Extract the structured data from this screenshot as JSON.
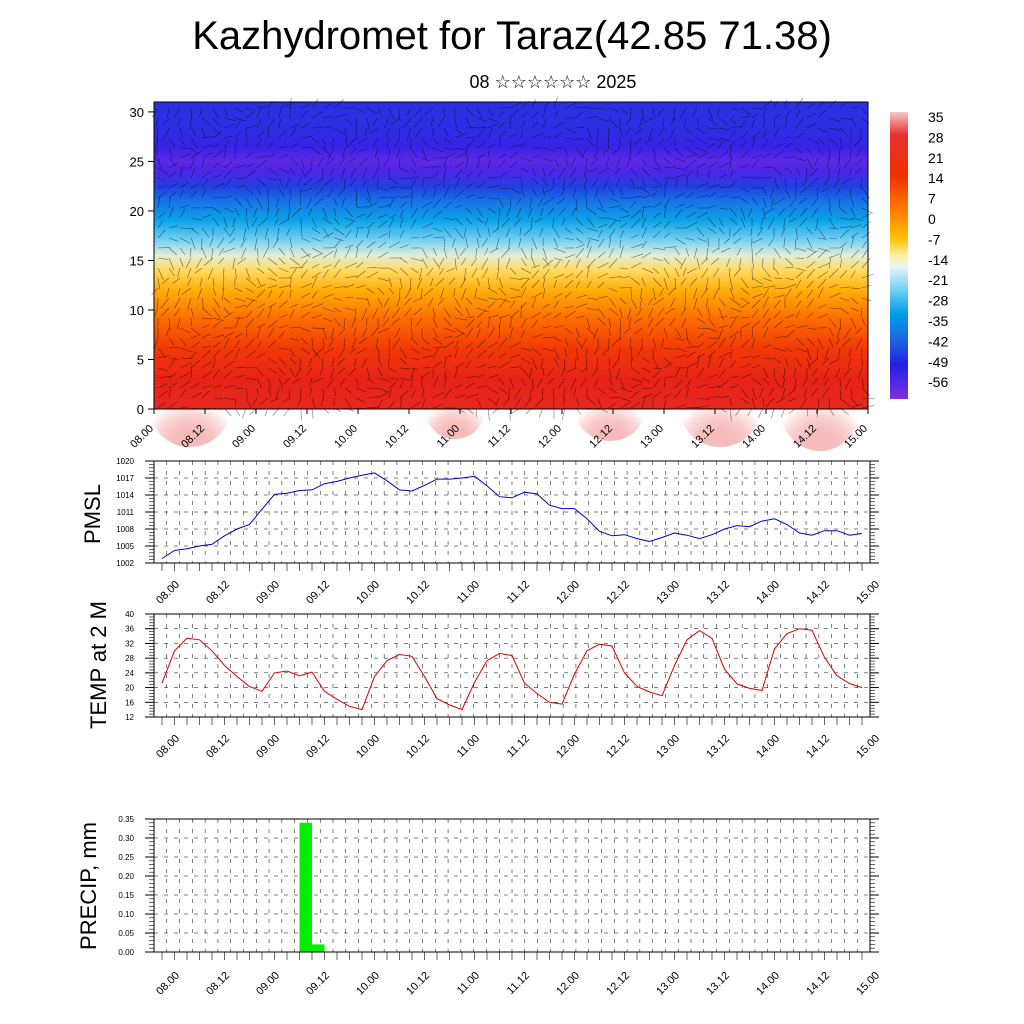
{
  "title": "Kazhydromet for Taraz(42.85 71.38)",
  "subtitle": "08 ☆☆☆☆☆☆ 2025",
  "time_labels": [
    "08.00",
    "08.12",
    "09.00",
    "09.12",
    "10.00",
    "10.12",
    "11.00",
    "11.12",
    "12.00",
    "12.12",
    "13.00",
    "13.12",
    "14.00",
    "14.12",
    "15.00"
  ],
  "colors": {
    "pmsl_line": "#0000cc",
    "temp_line": "#dd0000",
    "precip_bar": "#00ee00"
  },
  "chart_data": [
    {
      "type": "heatmap",
      "panel": "temperature cross-section with wind vectors",
      "y_ticks": [
        "0",
        "5",
        "10",
        "15",
        "20",
        "25",
        "30"
      ],
      "ylim": [
        0,
        31
      ],
      "xlim": [
        0,
        168
      ],
      "colorbar_labels": [
        "35",
        "28",
        "21",
        "14",
        "7",
        "0",
        "-7",
        "-14",
        "-21",
        "-28",
        "-35",
        "-42",
        "-49",
        "-56"
      ],
      "colorbar_range": [
        -60,
        38
      ],
      "profile": [
        {
          "level": 0,
          "value": 30
        },
        {
          "level": 3,
          "value": 29
        },
        {
          "level": 6,
          "value": 24
        },
        {
          "level": 9,
          "value": 16
        },
        {
          "level": 12,
          "value": 6
        },
        {
          "level": 14,
          "value": -2
        },
        {
          "level": 15.5,
          "value": -10
        },
        {
          "level": 17,
          "value": -18
        },
        {
          "level": 19,
          "value": -27
        },
        {
          "level": 21,
          "value": -38
        },
        {
          "level": 22.5,
          "value": -48
        },
        {
          "level": 24,
          "value": -57
        },
        {
          "level": 25,
          "value": -58
        },
        {
          "level": 26.5,
          "value": -55
        },
        {
          "level": 28,
          "value": -52
        },
        {
          "level": 31,
          "value": -51
        }
      ]
    },
    {
      "type": "line",
      "ylabel": "PMSL",
      "y_ticks": [
        "1002",
        "1005",
        "1008",
        "1011",
        "1014",
        "1017",
        "1020"
      ],
      "ylim": [
        1002,
        1020
      ],
      "x": [
        0,
        3,
        6,
        9,
        12,
        15,
        18,
        21,
        24,
        27,
        30,
        33,
        36,
        39,
        42,
        45,
        48,
        51,
        54,
        57,
        60,
        63,
        66,
        69,
        72,
        75,
        78,
        81,
        84,
        87,
        90,
        93,
        96,
        99,
        102,
        105,
        108,
        111,
        114,
        117,
        120,
        123,
        126,
        129,
        132,
        135,
        138,
        141,
        144,
        147,
        150,
        153,
        156,
        159,
        162,
        165,
        168
      ],
      "values": [
        1002.8,
        1004.2,
        1004.5,
        1005,
        1005.3,
        1006.8,
        1008,
        1008.8,
        1011.5,
        1014.1,
        1014.3,
        1014.8,
        1014.9,
        1016,
        1016.4,
        1017,
        1017.5,
        1017.9,
        1016.5,
        1014.9,
        1014.7,
        1015.7,
        1016.8,
        1016.8,
        1017,
        1017.3,
        1015.6,
        1013.7,
        1013.5,
        1014.5,
        1014.2,
        1012.2,
        1011.6,
        1011.6,
        1009.8,
        1007.6,
        1006.8,
        1007,
        1006.3,
        1005.8,
        1006.5,
        1007.3,
        1006.9,
        1006.3,
        1007,
        1008,
        1008.6,
        1008.4,
        1009.4,
        1009.8,
        1008.8,
        1007.3,
        1006.9,
        1007.7,
        1007.7,
        1006.9,
        1007.2
      ]
    },
    {
      "type": "line",
      "ylabel": "TEMP at 2 M",
      "y_ticks": [
        "12",
        "16",
        "20",
        "24",
        "28",
        "32",
        "36",
        "40"
      ],
      "ylim": [
        12,
        40
      ],
      "x": [
        0,
        3,
        6,
        9,
        12,
        15,
        18,
        21,
        24,
        27,
        30,
        33,
        36,
        39,
        42,
        45,
        48,
        51,
        54,
        57,
        60,
        63,
        66,
        69,
        72,
        75,
        78,
        81,
        84,
        87,
        90,
        93,
        96,
        99,
        102,
        105,
        108,
        111,
        114,
        117,
        120,
        123,
        126,
        129,
        132,
        135,
        138,
        141,
        144,
        147,
        150,
        153,
        156,
        159,
        162,
        165,
        168
      ],
      "values": [
        21.2,
        30,
        33.4,
        33,
        30,
        26,
        23,
        20.3,
        19,
        24,
        24.5,
        23.2,
        24.2,
        19,
        16.8,
        14.9,
        14,
        23,
        27.3,
        29,
        28.5,
        23,
        17,
        15.3,
        14,
        21.4,
        27.3,
        29.3,
        28.7,
        21.2,
        18.4,
        16,
        15.5,
        23.7,
        30,
        31.8,
        31.3,
        24,
        20.3,
        18.8,
        17.8,
        26,
        33,
        35.5,
        33.4,
        25,
        21,
        19.8,
        19.2,
        30.5,
        34.7,
        36,
        35.6,
        28.2,
        23.2,
        21.1,
        20
      ]
    },
    {
      "type": "bar",
      "ylabel": "PRECIP, mm",
      "y_ticks": [
        "0.00",
        "0.05",
        "0.10",
        "0.15",
        "0.20",
        "0.25",
        "0.30",
        "0.35"
      ],
      "ylim": [
        0,
        0.35
      ],
      "bars": [
        {
          "start": 33,
          "end": 36,
          "value": 0.34
        },
        {
          "start": 36,
          "end": 39,
          "value": 0.02
        }
      ]
    }
  ]
}
